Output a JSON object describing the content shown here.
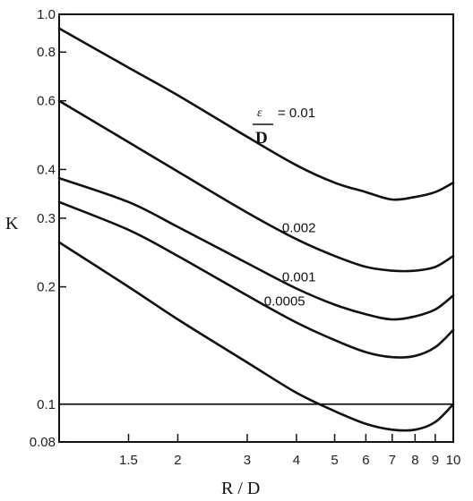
{
  "chart_data": {
    "type": "line",
    "xlabel": "R / D",
    "ylabel": "K",
    "xscale": "log",
    "yscale": "log",
    "xlim": [
      1.0,
      10.0
    ],
    "ylim": [
      0.08,
      1.0
    ],
    "x_ticks": [
      {
        "v": 1.5,
        "label": "1.5"
      },
      {
        "v": 2,
        "label": "2"
      },
      {
        "v": 3,
        "label": "3"
      },
      {
        "v": 4,
        "label": "4"
      },
      {
        "v": 5,
        "label": "5"
      },
      {
        "v": 6,
        "label": "6"
      },
      {
        "v": 7,
        "label": "7"
      },
      {
        "v": 8,
        "label": "8"
      },
      {
        "v": 9,
        "label": "9"
      },
      {
        "v": 10,
        "label": "10"
      }
    ],
    "y_ticks": [
      {
        "v": 1.0,
        "label": "1.0"
      },
      {
        "v": 0.8,
        "label": "0.8"
      },
      {
        "v": 0.6,
        "label": "0.6"
      },
      {
        "v": 0.4,
        "label": "0.4"
      },
      {
        "v": 0.3,
        "label": "0.3"
      },
      {
        "v": 0.2,
        "label": "0.2"
      },
      {
        "v": 0.1,
        "label": "0.1"
      },
      {
        "v": 0.08,
        "label": "0.08"
      }
    ],
    "reference_line": {
      "y": 0.1
    },
    "parameter_label": {
      "numerator": "ε",
      "denominator": "D"
    },
    "series": [
      {
        "name": "0.01",
        "label": "= 0.01",
        "x": [
          1.0,
          1.5,
          2,
          3,
          4,
          5,
          6,
          7,
          8,
          9,
          10
        ],
        "y": [
          0.92,
          0.73,
          0.62,
          0.485,
          0.41,
          0.37,
          0.35,
          0.335,
          0.34,
          0.35,
          0.37
        ]
      },
      {
        "name": "0.002",
        "label": "0.002",
        "x": [
          1.0,
          1.5,
          2,
          3,
          4,
          5,
          6,
          7,
          8,
          9,
          10
        ],
        "y": [
          0.6,
          0.47,
          0.395,
          0.31,
          0.265,
          0.24,
          0.225,
          0.22,
          0.22,
          0.225,
          0.24
        ]
      },
      {
        "name": "0.001",
        "label": "0.001",
        "x": [
          1.0,
          1.5,
          2,
          3,
          4,
          5,
          6,
          7,
          8,
          9,
          10
        ],
        "y": [
          0.38,
          0.33,
          0.285,
          0.23,
          0.198,
          0.18,
          0.17,
          0.165,
          0.168,
          0.175,
          0.19
        ]
      },
      {
        "name": "0.0005",
        "label": "0.0005",
        "x": [
          1.0,
          1.5,
          2,
          3,
          4,
          5,
          6,
          7,
          8,
          9,
          10
        ],
        "y": [
          0.33,
          0.28,
          0.24,
          0.19,
          0.162,
          0.146,
          0.136,
          0.132,
          0.133,
          0.14,
          0.155
        ]
      },
      {
        "name": "smooth",
        "label": "",
        "x": [
          1.0,
          1.5,
          2,
          3,
          4,
          5,
          6,
          7,
          8,
          9,
          10
        ],
        "y": [
          0.26,
          0.2,
          0.165,
          0.128,
          0.107,
          0.096,
          0.089,
          0.086,
          0.086,
          0.09,
          0.1
        ]
      }
    ]
  }
}
